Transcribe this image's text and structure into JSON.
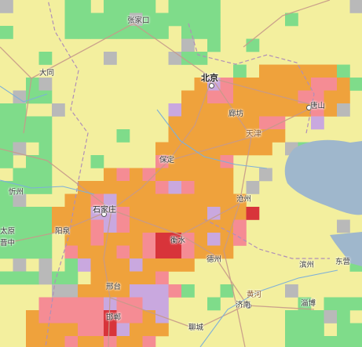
{
  "colors": {
    "base": "#f3ef9e",
    "green": "#7fdc8a",
    "gray": "#b9b9b9",
    "orange": "#efa23c",
    "pink": "#f58c94",
    "purple": "#c9a8df",
    "red": "#d8343a",
    "water": "#9fb7cc",
    "road": "#c79a8a",
    "river": "#7eb0d8"
  },
  "cities": {
    "zhangjiakou": "张家口",
    "datong": "大同",
    "beijing": "北京",
    "tangshan": "唐山",
    "langfang": "廊坊",
    "tianjin": "天津",
    "baoding": "保定",
    "xinzhou": "忻州",
    "shijiazhuang": "石家庄",
    "cangzhou": "沧州",
    "taiyuan": "太原",
    "yangquan": "阳泉",
    "jinzhong": "晋中",
    "hengshui": "衡水",
    "dezhou": "德州",
    "binzhou": "滨州",
    "dongying": "东营",
    "xingtai": "邢台",
    "jinan": "济南",
    "zibo": "淄博",
    "handan": "邯郸",
    "liaocheng": "聊城",
    "yellow_river": "黄河"
  }
}
